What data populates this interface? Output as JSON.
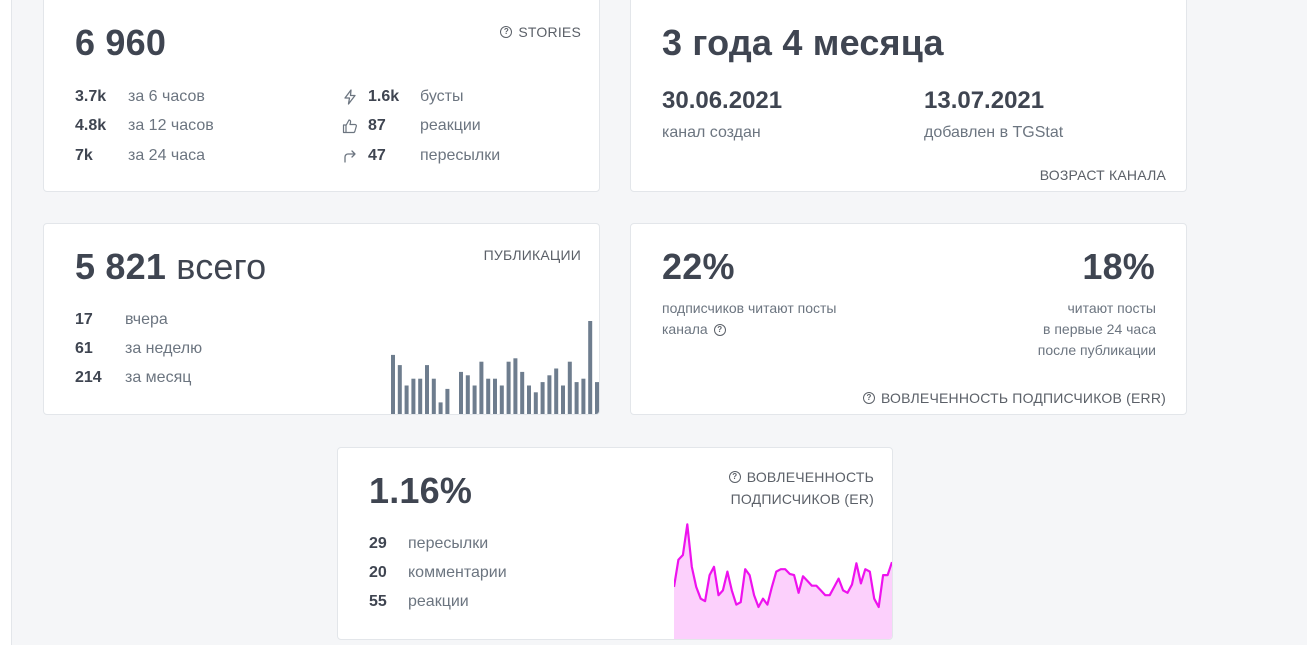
{
  "stories_card": {
    "total": "6 960",
    "title": "STORIES",
    "views": [
      {
        "value": "3.7k",
        "label": "за 6 часов"
      },
      {
        "value": "4.8k",
        "label": "за 12 часов"
      },
      {
        "value": "7k",
        "label": "за 24 часа"
      }
    ],
    "stats": [
      {
        "icon": "lightning-icon",
        "value": "1.6k",
        "label": "бусты"
      },
      {
        "icon": "thumbs-up-icon",
        "value": "87",
        "label": "реакции"
      },
      {
        "icon": "forward-arrow-icon",
        "value": "47",
        "label": "пересылки"
      }
    ]
  },
  "age_card": {
    "duration": "3 года 4 месяца",
    "created_date": "30.06.2021",
    "created_label": "канал создан",
    "added_date": "13.07.2021",
    "added_label": "добавлен в TGStat",
    "title": "ВОЗРАСТ КАНАЛА"
  },
  "publications_card": {
    "total": "5 821",
    "total_suffix": "всего",
    "title": "ПУБЛИКАЦИИ",
    "rows": [
      {
        "value": "17",
        "label": "вчера"
      },
      {
        "value": "61",
        "label": "за неделю"
      },
      {
        "value": "214",
        "label": "за месяц"
      }
    ],
    "bar_values": [
      9,
      7.5,
      4.5,
      5.5,
      5.5,
      7.5,
      5.5,
      2,
      4,
      0,
      6.5,
      6,
      4.5,
      8,
      5.5,
      5.5,
      4.5,
      8,
      8.5,
      6.5,
      4.5,
      3.5,
      5,
      6,
      7,
      4.5,
      8,
      5,
      5.5,
      14,
      5
    ]
  },
  "err_card": {
    "percent_left": "22%",
    "text_left": [
      "подписчиков читают посты",
      "канала"
    ],
    "percent_right": "18%",
    "text_right": [
      "читают посты",
      "в первые 24 часа",
      "после публикации"
    ],
    "title": "ВОВЛЕЧЕННОСТЬ ПОДПИСЧИКОВ (ERR)"
  },
  "er_card": {
    "percent": "1.16%",
    "title_line1": "ВОВЛЕЧЕННОСТЬ",
    "title_line2": "ПОДПИСЧИКОВ (ER)",
    "rows": [
      {
        "value": "29",
        "label": "пересылки"
      },
      {
        "value": "20",
        "label": "комментарии"
      },
      {
        "value": "55",
        "label": "реакции"
      }
    ],
    "line_color": "#ee12ee",
    "fill_color": "#fcd0fc",
    "line_values": [
      0.45,
      0.68,
      0.72,
      0.98,
      0.62,
      0.45,
      0.35,
      0.33,
      0.55,
      0.62,
      0.38,
      0.42,
      0.58,
      0.42,
      0.3,
      0.32,
      0.6,
      0.55,
      0.38,
      0.28,
      0.35,
      0.3,
      0.45,
      0.58,
      0.6,
      0.6,
      0.56,
      0.55,
      0.4,
      0.54,
      0.5,
      0.46,
      0.46,
      0.42,
      0.38,
      0.38,
      0.45,
      0.52,
      0.42,
      0.4,
      0.47,
      0.65,
      0.48,
      0.6,
      0.58,
      0.35,
      0.28,
      0.55,
      0.55,
      0.66
    ]
  }
}
